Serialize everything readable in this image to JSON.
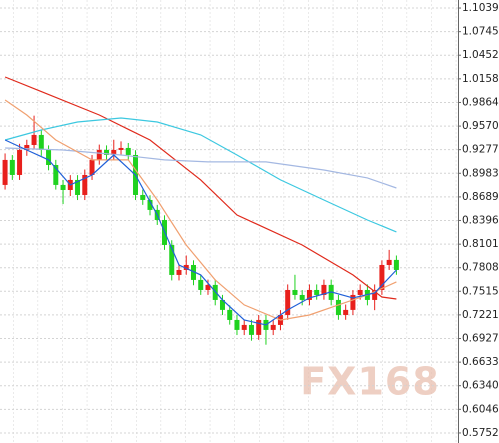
{
  "chart_data": {
    "type": "candlestick",
    "open": [
      0.8838,
      0.9149,
      0.8962,
      0.9273,
      0.9335,
      0.946,
      0.9273,
      0.9086,
      0.8838,
      0.8775,
      0.89,
      0.8713,
      0.8962,
      0.9149,
      0.9273,
      0.9211,
      0.9273,
      0.9298,
      0.9211,
      0.8713,
      0.8651,
      0.8527,
      0.8402,
      0.8091,
      0.7718,
      0.778,
      0.7842,
      0.7656,
      0.7531,
      0.7594,
      0.7407,
      0.7283,
      0.7158,
      0.7034,
      0.7096,
      0.6972,
      0.7158,
      0.7034,
      0.7096,
      0.722,
      0.7531,
      0.7469,
      0.7407,
      0.7531,
      0.7469,
      0.7594,
      0.7407,
      0.722,
      0.7283,
      0.7469,
      0.7531,
      0.7407,
      0.7531,
      0.7842,
      0.7905
    ],
    "high": [
      0.923,
      0.921,
      0.935,
      0.94,
      0.97,
      0.952,
      0.933,
      0.915,
      0.89,
      0.896,
      0.896,
      0.903,
      0.921,
      0.934,
      0.933,
      0.94,
      0.938,
      0.936,
      0.927,
      0.878,
      0.871,
      0.859,
      0.846,
      0.815,
      0.785,
      0.796,
      0.79,
      0.772,
      0.766,
      0.766,
      0.747,
      0.734,
      0.722,
      0.716,
      0.716,
      0.722,
      0.722,
      0.716,
      0.728,
      0.76,
      0.772,
      0.753,
      0.76,
      0.76,
      0.766,
      0.766,
      0.747,
      0.735,
      0.753,
      0.76,
      0.76,
      0.76,
      0.79,
      0.803,
      0.796
    ],
    "low": [
      0.878,
      0.89,
      0.89,
      0.92,
      0.928,
      0.92,
      0.902,
      0.878,
      0.86,
      0.87,
      0.865,
      0.865,
      0.89,
      0.909,
      0.915,
      0.915,
      0.921,
      0.915,
      0.865,
      0.859,
      0.846,
      0.834,
      0.803,
      0.765,
      0.765,
      0.772,
      0.759,
      0.747,
      0.747,
      0.734,
      0.722,
      0.71,
      0.697,
      0.697,
      0.69,
      0.691,
      0.685,
      0.697,
      0.703,
      0.716,
      0.741,
      0.734,
      0.734,
      0.741,
      0.741,
      0.734,
      0.716,
      0.716,
      0.722,
      0.741,
      0.734,
      0.728,
      0.747,
      0.778,
      0.772
    ],
    "close": [
      0.9149,
      0.8962,
      0.9273,
      0.9335,
      0.946,
      0.9273,
      0.9086,
      0.8838,
      0.8775,
      0.89,
      0.8713,
      0.8962,
      0.9149,
      0.9273,
      0.9211,
      0.9273,
      0.9298,
      0.9211,
      0.8713,
      0.8651,
      0.8527,
      0.8402,
      0.8091,
      0.7718,
      0.778,
      0.7842,
      0.7656,
      0.7531,
      0.7594,
      0.7407,
      0.7283,
      0.7158,
      0.7034,
      0.7096,
      0.6972,
      0.7158,
      0.7034,
      0.7096,
      0.722,
      0.7531,
      0.7469,
      0.7407,
      0.7531,
      0.7469,
      0.7594,
      0.7407,
      0.722,
      0.7283,
      0.7469,
      0.7531,
      0.7407,
      0.7531,
      0.7842,
      0.7905,
      0.778
    ],
    "up_color": "#e8201c",
    "down_color": "#1fd21f",
    "lines": [
      {
        "color": "#e02a1c",
        "x": [
          0,
          5,
          13,
          20,
          27,
          32,
          41,
          48,
          52,
          54
        ],
        "values": [
          1.0181,
          0.9999,
          0.9708,
          0.9397,
          0.89,
          0.8464,
          0.8091,
          0.7718,
          0.7444,
          0.7419
        ]
      },
      {
        "color": "#3cc8e0",
        "x": [
          0,
          5,
          10,
          16,
          21,
          27,
          32,
          38,
          44,
          50,
          54
        ],
        "values": [
          0.9397,
          0.9522,
          0.9621,
          0.9671,
          0.9621,
          0.946,
          0.9211,
          0.89,
          0.8651,
          0.8402,
          0.8253
        ]
      },
      {
        "color": "#a4b8e2",
        "x": [
          0,
          8,
          16,
          22,
          28,
          36,
          44,
          50,
          54
        ],
        "values": [
          0.9298,
          0.9273,
          0.9211,
          0.9149,
          0.9124,
          0.9124,
          0.9024,
          0.8925,
          0.88
        ]
      },
      {
        "color": "#f0a070",
        "x": [
          0,
          3,
          7,
          12,
          17,
          21,
          25,
          29,
          33,
          38,
          42,
          46,
          50,
          54
        ],
        "values": [
          0.9895,
          0.9708,
          0.9397,
          0.9149,
          0.9149,
          0.8651,
          0.8091,
          0.7656,
          0.7345,
          0.7158,
          0.722,
          0.7345,
          0.7469,
          0.7631
        ]
      },
      {
        "color": "#2060d8",
        "x": [
          0,
          3,
          6,
          9,
          12,
          15,
          18,
          21,
          24,
          27,
          30,
          33,
          36,
          39,
          42,
          45,
          48,
          51,
          54
        ],
        "values": [
          0.9397,
          0.9273,
          0.9149,
          0.8838,
          0.8962,
          0.9211,
          0.8962,
          0.8464,
          0.7842,
          0.7718,
          0.7407,
          0.7158,
          0.7096,
          0.7283,
          0.7432,
          0.7507,
          0.7432,
          0.7494,
          0.778
        ]
      }
    ],
    "xlim": [
      -0.7,
      62.5
    ],
    "ylim": [
      0.5627,
      1.1139
    ],
    "yticks": [
      1.1039,
      1.0745,
      1.0452,
      1.0158,
      0.9864,
      {
        "value": 0.957,
        "label": "0.9570"
      },
      0.9277,
      0.8983,
      0.8689,
      0.8396,
      0.8101,
      0.7808,
      0.7515,
      0.7221,
      0.6927,
      0.6633,
      {
        "value": 0.634,
        "label": "0.6340"
      },
      0.6046,
      0.5752
    ],
    "grid": true,
    "watermark": "FX168"
  }
}
